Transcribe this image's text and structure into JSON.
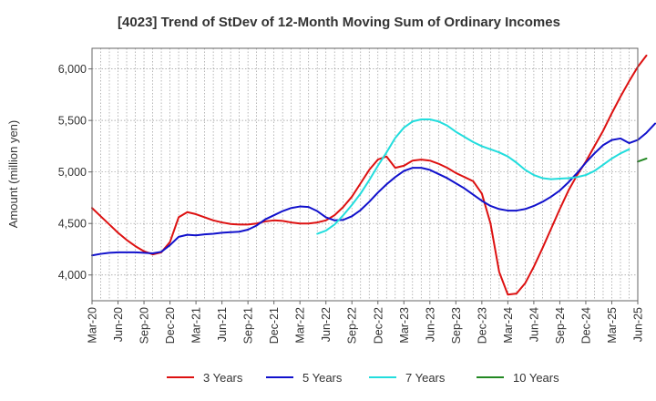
{
  "chart_data": {
    "type": "line",
    "title": "[4023]  Trend of StDev of 12-Month Moving Sum of Ordinary Incomes",
    "xlabel": "",
    "ylabel": "Amount (million yen)",
    "ylim": [
      3750,
      6200
    ],
    "yticks": [
      4000,
      4500,
      5000,
      5500,
      6000
    ],
    "ytick_labels": [
      "4,000",
      "4,500",
      "5,000",
      "5,500",
      "6,000"
    ],
    "x_tick_labels": [
      "Mar-20",
      "Jun-20",
      "Sep-20",
      "Dec-20",
      "Mar-21",
      "Jun-21",
      "Sep-21",
      "Dec-21",
      "Mar-22",
      "Jun-22",
      "Sep-22",
      "Dec-22",
      "Mar-23",
      "Jun-23",
      "Sep-23",
      "Dec-23",
      "Mar-24",
      "Jun-24",
      "Sep-24",
      "Dec-24",
      "Mar-25",
      "Jun-25"
    ],
    "x_start": "Mar-20",
    "legend_position": "bottom",
    "grid": true,
    "series": [
      {
        "name": "3 Years",
        "color": "#dd1111",
        "start_index": 0,
        "values": [
          4650,
          4570,
          4490,
          4410,
          4340,
          4280,
          4230,
          4200,
          4220,
          4320,
          4560,
          4610,
          4590,
          4560,
          4530,
          4510,
          4495,
          4490,
          4490,
          4500,
          4520,
          4530,
          4525,
          4510,
          4500,
          4500,
          4510,
          4530,
          4580,
          4660,
          4760,
          4890,
          5020,
          5120,
          5150,
          5040,
          5060,
          5110,
          5120,
          5110,
          5080,
          5040,
          4990,
          4950,
          4910,
          4790,
          4500,
          4030,
          3810,
          3820,
          3920,
          4080,
          4260,
          4450,
          4640,
          4820,
          4970,
          5100,
          5250,
          5400,
          5570,
          5730,
          5880,
          6020,
          6130
        ]
      },
      {
        "name": "5 Years",
        "color": "#1111cc",
        "start_index": 0,
        "values": [
          4190,
          4205,
          4215,
          4220,
          4220,
          4220,
          4215,
          4210,
          4225,
          4290,
          4370,
          4390,
          4385,
          4395,
          4400,
          4410,
          4415,
          4420,
          4440,
          4480,
          4540,
          4580,
          4620,
          4650,
          4665,
          4660,
          4620,
          4560,
          4530,
          4535,
          4570,
          4630,
          4710,
          4800,
          4880,
          4950,
          5010,
          5040,
          5040,
          5020,
          4980,
          4940,
          4890,
          4840,
          4780,
          4720,
          4670,
          4640,
          4625,
          4625,
          4640,
          4670,
          4710,
          4760,
          4820,
          4900,
          4990,
          5090,
          5180,
          5260,
          5310,
          5325,
          5280,
          5310,
          5380,
          5470
        ]
      },
      {
        "name": "7 Years",
        "color": "#22dddd",
        "start_index": 26,
        "values": [
          4400,
          4430,
          4490,
          4580,
          4680,
          4790,
          4920,
          5060,
          5190,
          5330,
          5430,
          5490,
          5510,
          5510,
          5490,
          5450,
          5390,
          5340,
          5290,
          5250,
          5220,
          5190,
          5150,
          5090,
          5020,
          4970,
          4940,
          4930,
          4935,
          4940,
          4950,
          4970,
          5010,
          5070,
          5130,
          5180,
          5220
        ]
      },
      {
        "name": "10 Years",
        "color": "#228822",
        "start_index": 63,
        "values": [
          5100,
          5130
        ]
      }
    ]
  }
}
